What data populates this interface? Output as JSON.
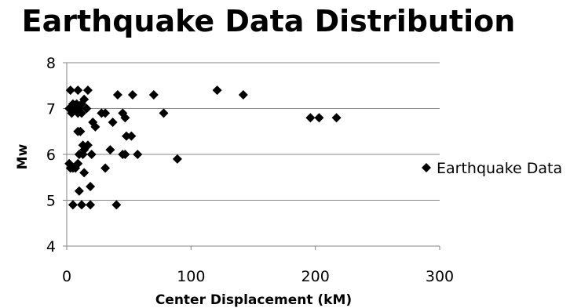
{
  "chart_data": {
    "type": "scatter",
    "title": "Earthquake Data Distribution",
    "xlabel": "Center Displacement (kM)",
    "ylabel": "Mw",
    "xlim": [
      0,
      300
    ],
    "ylim": [
      4,
      8
    ],
    "x_ticks": [
      "0",
      "100",
      "200",
      "300"
    ],
    "y_ticks": [
      "4",
      "5",
      "6",
      "7",
      "8"
    ],
    "grid": "horizontal",
    "legend_position": "right",
    "marker": "diamond",
    "marker_color": "#000000",
    "series": [
      {
        "name": "Earthquake Data",
        "points": [
          [
            3,
            7.4
          ],
          [
            9,
            7.4
          ],
          [
            17,
            7.4
          ],
          [
            5,
            7.1
          ],
          [
            8,
            7.1
          ],
          [
            2,
            7.0
          ],
          [
            4,
            6.9
          ],
          [
            6,
            7.0
          ],
          [
            10,
            7.0
          ],
          [
            12,
            7.1
          ],
          [
            14,
            7.2
          ],
          [
            16,
            7.0
          ],
          [
            12,
            6.9
          ],
          [
            9,
            6.9
          ],
          [
            11,
            6.5
          ],
          [
            9,
            6.5
          ],
          [
            13,
            6.2
          ],
          [
            17,
            6.2
          ],
          [
            14,
            6.1
          ],
          [
            10,
            6.0
          ],
          [
            13,
            6.0
          ],
          [
            20,
            6.0
          ],
          [
            2,
            5.8
          ],
          [
            3,
            5.7
          ],
          [
            5,
            5.7
          ],
          [
            7,
            5.7
          ],
          [
            9,
            5.8
          ],
          [
            14,
            5.6
          ],
          [
            10,
            5.2
          ],
          [
            19,
            5.3
          ],
          [
            5,
            4.9
          ],
          [
            12,
            4.9
          ],
          [
            19,
            4.9
          ],
          [
            40,
            4.9
          ],
          [
            21,
            6.7
          ],
          [
            23,
            6.6
          ],
          [
            28,
            6.9
          ],
          [
            31,
            6.9
          ],
          [
            37,
            6.7
          ],
          [
            41,
            7.3
          ],
          [
            45,
            6.9
          ],
          [
            47,
            6.8
          ],
          [
            53,
            7.3
          ],
          [
            70,
            7.3
          ],
          [
            78,
            6.9
          ],
          [
            48,
            6.4
          ],
          [
            52,
            6.4
          ],
          [
            35,
            6.1
          ],
          [
            45,
            6.0
          ],
          [
            47,
            6.0
          ],
          [
            57,
            6.0
          ],
          [
            31,
            5.7
          ],
          [
            89,
            5.9
          ],
          [
            121,
            7.4
          ],
          [
            142,
            7.3
          ],
          [
            196,
            6.8
          ],
          [
            203,
            6.8
          ],
          [
            217,
            6.8
          ]
        ]
      }
    ]
  }
}
